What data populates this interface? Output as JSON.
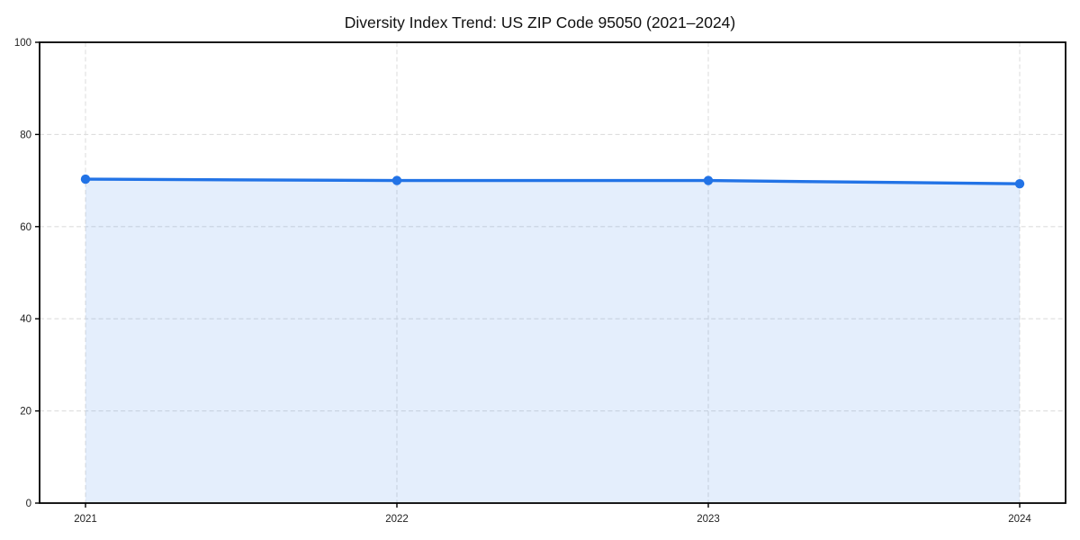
{
  "chart_data": {
    "type": "area",
    "title": "Diversity Index Trend: US ZIP Code 95050 (2021–2024)",
    "series_name": "Diversity Index",
    "categories": [
      "2021",
      "2022",
      "2023",
      "2024"
    ],
    "values": [
      70.3,
      70.0,
      70.0,
      69.3
    ],
    "xlabel": "",
    "ylabel": "",
    "ylim": [
      0,
      100
    ],
    "yticks": [
      0,
      20,
      40,
      60,
      80,
      100
    ],
    "grid": "dashed-both-axes",
    "legend": "none",
    "colors": {
      "line": "#2273e6",
      "marker": "#2273e6",
      "fill": "rgba(34, 115, 230, 0.12)",
      "gridline": "#dedede",
      "spine": "#000000",
      "tick_mark": "#000000",
      "tick_label": "#222222",
      "title": "#111111",
      "background": "#ffffff"
    }
  }
}
